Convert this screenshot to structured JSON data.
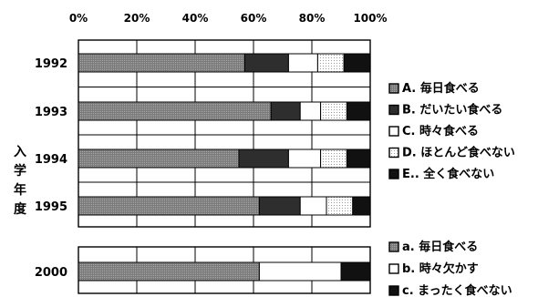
{
  "chart_data": [
    {
      "type": "bar",
      "orientation": "horizontal",
      "stacked": true,
      "title": "",
      "xlabel": "",
      "ylabel": "入学年度",
      "xlim": [
        0,
        100
      ],
      "x_ticks": [
        "0%",
        "20%",
        "40%",
        "60%",
        "80%",
        "100%"
      ],
      "grid": true,
      "legend_position": "right",
      "categories": [
        "1992",
        "1993",
        "1994",
        "1995"
      ],
      "series": [
        {
          "name": "A. 毎日食べる",
          "color": "#8c8c8c",
          "values": [
            57,
            66,
            55,
            62
          ]
        },
        {
          "name": "B. だいたい食べる",
          "color": "#2e2e2e",
          "values": [
            15,
            10,
            17,
            14
          ]
        },
        {
          "name": "C. 時々食べる",
          "color": "#ffffff",
          "values": [
            10,
            7,
            11,
            9
          ]
        },
        {
          "name": "D. ほとんど食べない",
          "color": "#f2f2f2",
          "values": [
            9,
            9,
            9,
            9
          ]
        },
        {
          "name": "E.. 全く食べない",
          "color": "#111111",
          "values": [
            9,
            8,
            8,
            6
          ]
        }
      ]
    },
    {
      "type": "bar",
      "orientation": "horizontal",
      "stacked": true,
      "title": "",
      "xlabel": "",
      "ylabel": "",
      "xlim": [
        0,
        100
      ],
      "grid": true,
      "legend_position": "right",
      "categories": [
        "2000"
      ],
      "series": [
        {
          "name": "a. 毎日食べる",
          "color": "#8c8c8c",
          "values": [
            62
          ]
        },
        {
          "name": "b. 時々欠かす",
          "color": "#ffffff",
          "values": [
            28
          ]
        },
        {
          "name": "c. まったく食べない",
          "color": "#111111",
          "values": [
            10
          ]
        }
      ]
    }
  ]
}
